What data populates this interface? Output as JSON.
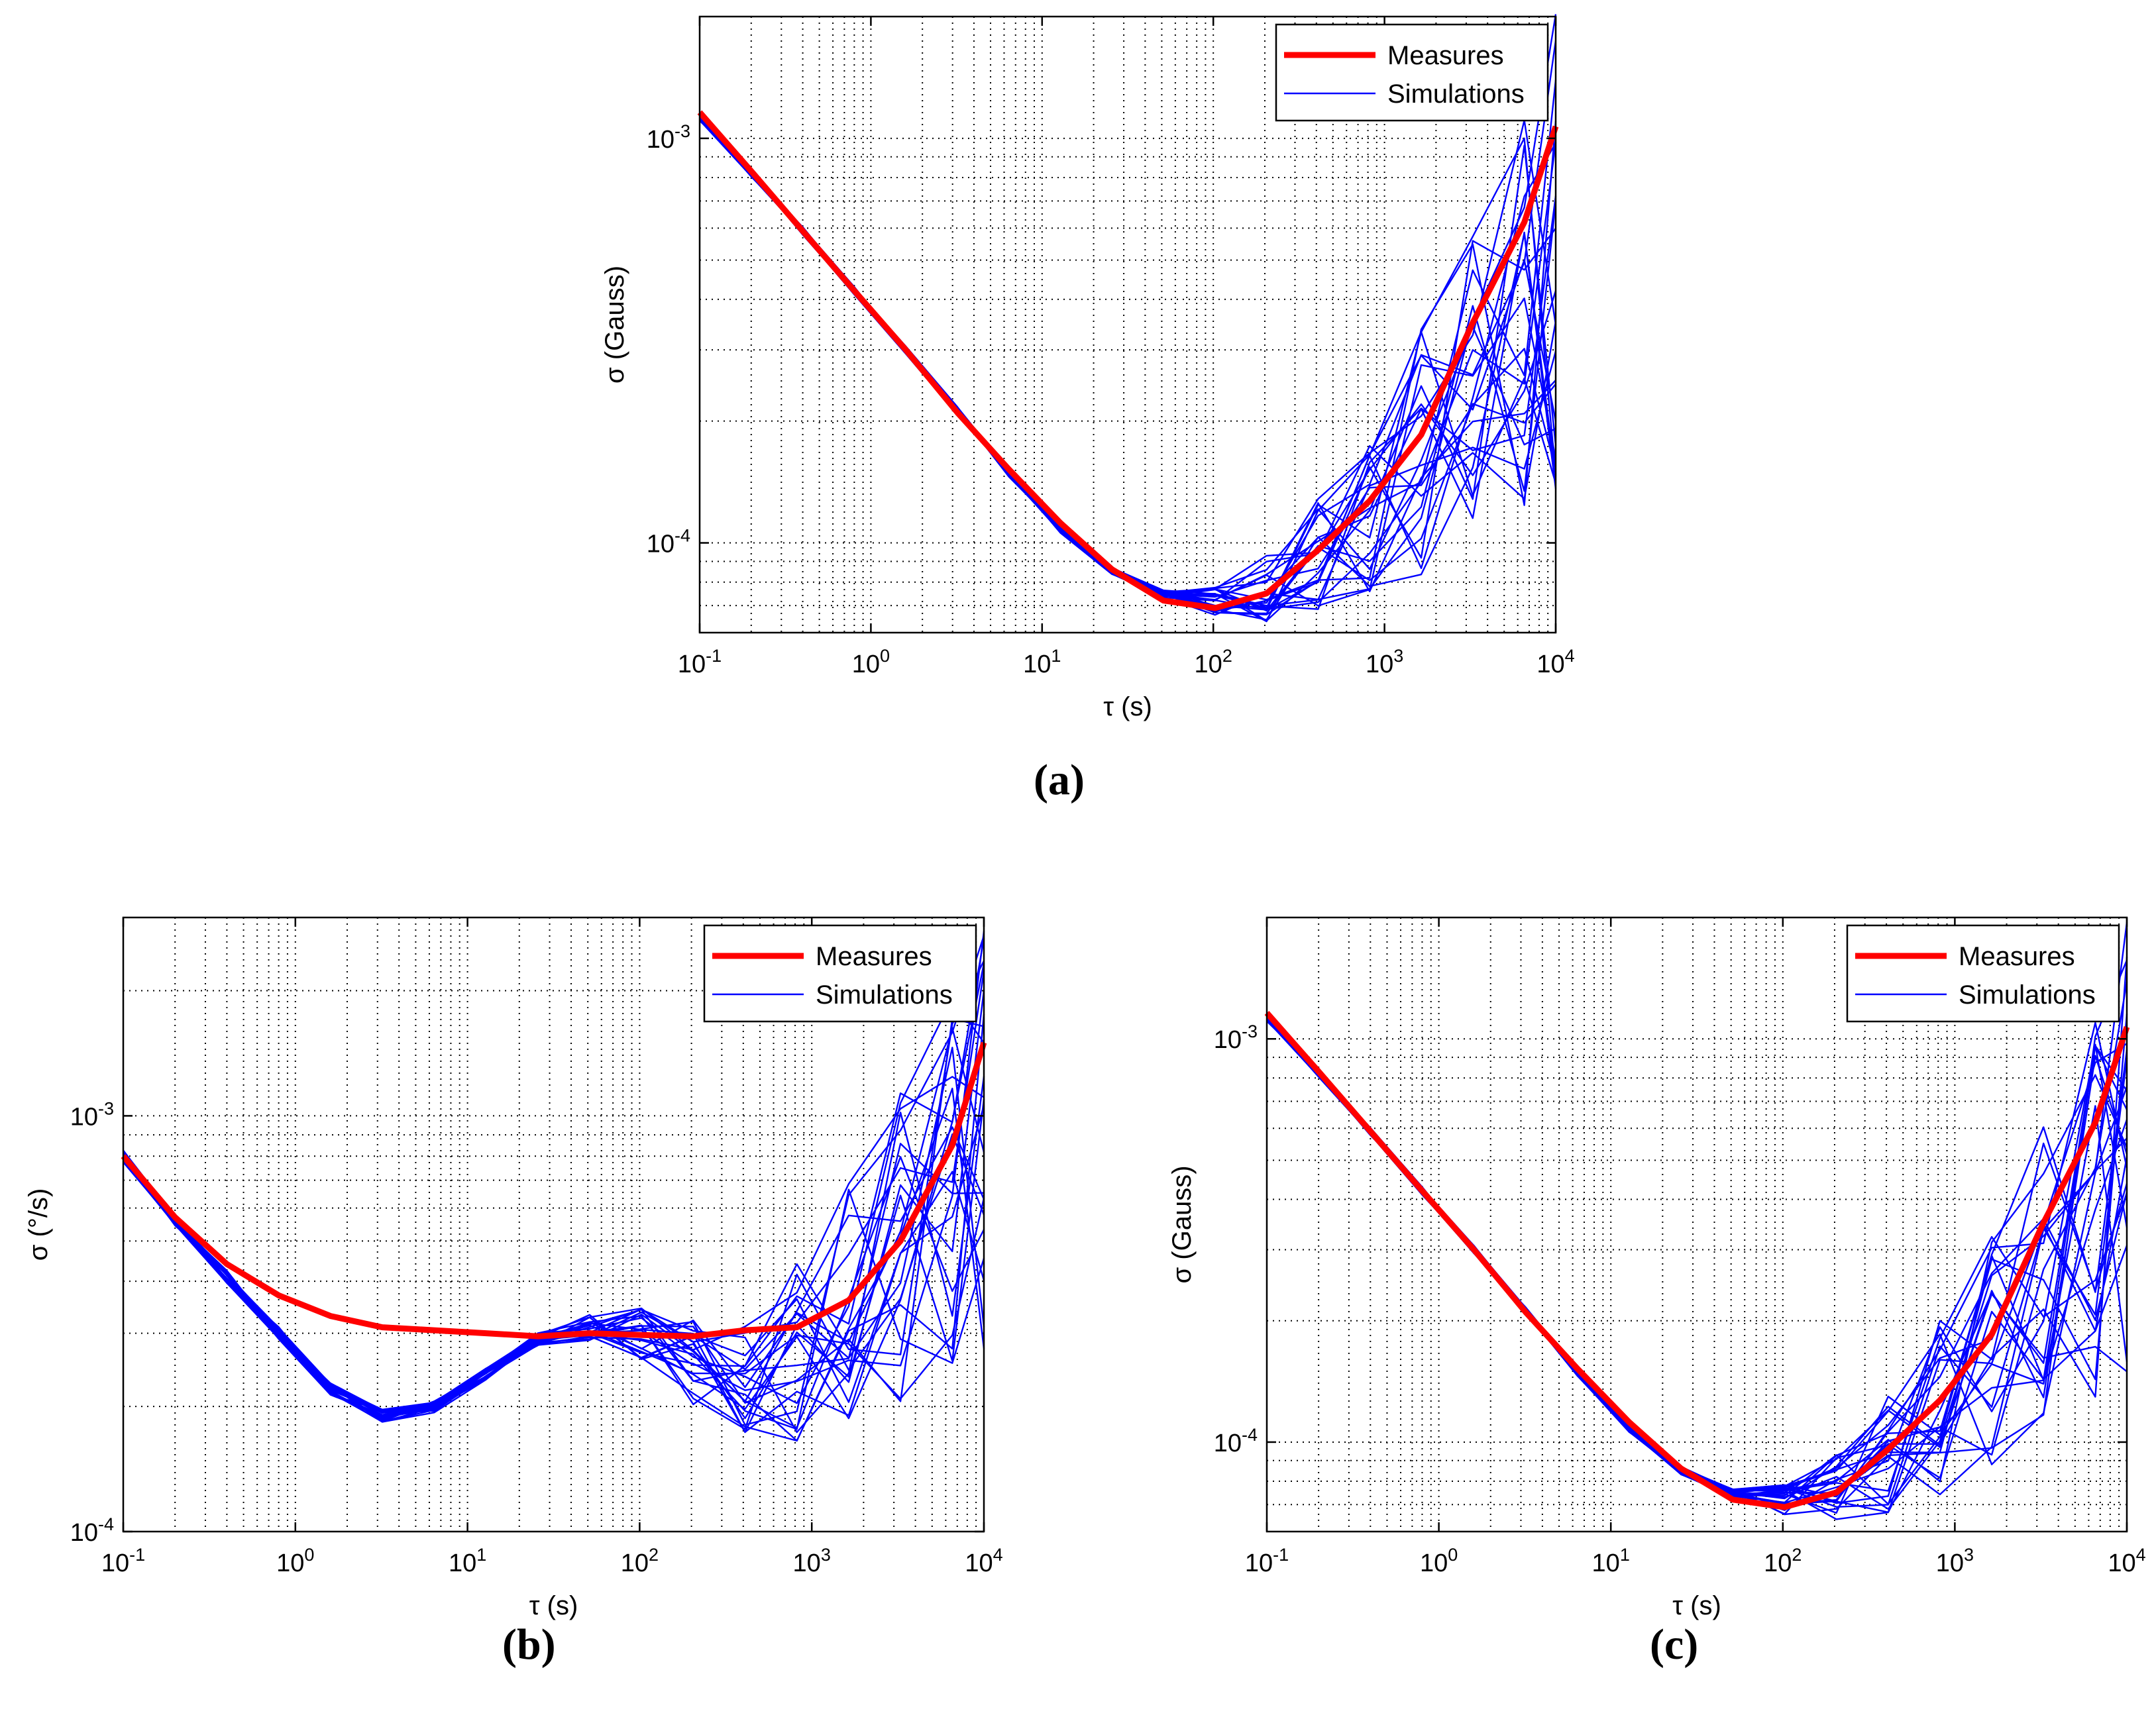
{
  "colors": {
    "measures": "#ff0000",
    "simulations": "#0000ff",
    "grid": "#000000"
  },
  "panel_labels": [
    "(a)",
    "(b)",
    "(c)"
  ],
  "chart_data": [
    {
      "id": "a",
      "type": "line",
      "panel_label": "(a)",
      "xlabel": "τ (s)",
      "ylabel": "σ (Gauss)",
      "xscale": "log",
      "yscale": "log",
      "xlim": [
        0.1,
        10000
      ],
      "ylim": [
        6e-05,
        0.002
      ],
      "xticks": [
        {
          "base": "10",
          "exp": "-1"
        },
        {
          "base": "10",
          "exp": "0"
        },
        {
          "base": "10",
          "exp": "1"
        },
        {
          "base": "10",
          "exp": "2"
        },
        {
          "base": "10",
          "exp": "3"
        },
        {
          "base": "10",
          "exp": "4"
        }
      ],
      "yticks": [
        {
          "base": "10",
          "exp": "-4",
          "value": 0.0001
        },
        {
          "base": "10",
          "exp": "-3",
          "value": 0.001
        }
      ],
      "grid": true,
      "legend": {
        "position": "top-right",
        "entries": [
          "Measures",
          "Simulations"
        ]
      },
      "x": [
        0.1,
        0.2,
        0.4,
        0.8,
        1.6,
        3.2,
        6.4,
        12.8,
        25.6,
        51.2,
        102.4,
        204.8,
        409.6,
        819.2,
        1638.4,
        3276.8,
        6553.6,
        10000
      ],
      "series": [
        {
          "name": "Measures",
          "values": [
            0.00116,
            0.00083,
            0.00059,
            0.00042,
            0.0003,
            0.00021,
            0.000152,
            0.000112,
            8.6e-05,
            7.2e-05,
            6.9e-05,
            7.5e-05,
            9.6e-05,
            0.000127,
            0.000185,
            0.00035,
            0.00062,
            0.00107
          ]
        },
        {
          "name": "Simulations",
          "values": [
            0.00113,
            0.00082,
            0.00059,
            0.00042,
            0.0003,
            0.000212,
            0.000149,
            0.000108,
            8.5e-05,
            7.5e-05,
            7.2e-05,
            7.7e-05,
            9.4e-05,
            0.000122,
            0.000168,
            0.00025,
            0.00037,
            0.00052
          ]
        }
      ]
    },
    {
      "id": "b",
      "type": "line",
      "panel_label": "(b)",
      "xlabel": "τ (s)",
      "ylabel": "σ (°/s)",
      "xscale": "log",
      "yscale": "log",
      "xlim": [
        0.1,
        10000
      ],
      "ylim": [
        0.0001,
        0.003
      ],
      "xticks": [
        {
          "base": "10",
          "exp": "-1"
        },
        {
          "base": "10",
          "exp": "0"
        },
        {
          "base": "10",
          "exp": "1"
        },
        {
          "base": "10",
          "exp": "2"
        },
        {
          "base": "10",
          "exp": "3"
        },
        {
          "base": "10",
          "exp": "4"
        }
      ],
      "yticks": [
        {
          "base": "10",
          "exp": "-4",
          "value": 0.0001
        },
        {
          "base": "10",
          "exp": "-3",
          "value": 0.001
        }
      ],
      "grid": true,
      "legend": {
        "position": "top-right",
        "entries": [
          "Measures",
          "Simulations"
        ]
      },
      "x": [
        0.1,
        0.2,
        0.4,
        0.8,
        1.6,
        3.2,
        6.4,
        12.8,
        25.6,
        51.2,
        102.4,
        204.8,
        409.6,
        819.2,
        1638.4,
        3276.8,
        6553.6,
        10000
      ],
      "series": [
        {
          "name": "Measures",
          "values": [
            0.0008,
            0.00057,
            0.00044,
            0.00037,
            0.00033,
            0.00031,
            0.000305,
            0.0003,
            0.000295,
            0.0003,
            0.000297,
            0.000295,
            0.000305,
            0.00031,
            0.00036,
            0.0005,
            0.00085,
            0.0015
          ]
        },
        {
          "name": "Simulations",
          "values": [
            0.0008,
            0.00056,
            0.00041,
            0.0003,
            0.00022,
            0.00019,
            0.0002,
            0.00024,
            0.00029,
            0.00031,
            0.0003,
            0.00026,
            0.00025,
            0.00028,
            0.00035,
            0.00048,
            0.00068,
            0.00095
          ]
        }
      ]
    },
    {
      "id": "c",
      "type": "line",
      "panel_label": "(c)",
      "xlabel": "τ (s)",
      "ylabel": "σ (Gauss)",
      "xscale": "log",
      "yscale": "log",
      "xlim": [
        0.1,
        10000
      ],
      "ylim": [
        6e-05,
        0.002
      ],
      "xticks": [
        {
          "base": "10",
          "exp": "-1"
        },
        {
          "base": "10",
          "exp": "0"
        },
        {
          "base": "10",
          "exp": "1"
        },
        {
          "base": "10",
          "exp": "2"
        },
        {
          "base": "10",
          "exp": "3"
        },
        {
          "base": "10",
          "exp": "4"
        }
      ],
      "yticks": [
        {
          "base": "10",
          "exp": "-4",
          "value": 0.0001
        },
        {
          "base": "10",
          "exp": "-3",
          "value": 0.001
        }
      ],
      "grid": true,
      "legend": {
        "position": "top-right",
        "entries": [
          "Measures",
          "Simulations"
        ]
      },
      "x": [
        0.1,
        0.2,
        0.4,
        0.8,
        1.6,
        3.2,
        6.4,
        12.8,
        25.6,
        51.2,
        102.4,
        204.8,
        409.6,
        819.2,
        1638.4,
        3276.8,
        6553.6,
        10000
      ],
      "series": [
        {
          "name": "Measures",
          "values": [
            0.00116,
            0.00083,
            0.00059,
            0.00042,
            0.0003,
            0.00021,
            0.000152,
            0.000112,
            8.6e-05,
            7.2e-05,
            6.9e-05,
            7.5e-05,
            9.6e-05,
            0.000127,
            0.000185,
            0.00035,
            0.00062,
            0.00107
          ]
        },
        {
          "name": "Simulations",
          "values": [
            0.00113,
            0.00082,
            0.00059,
            0.00042,
            0.0003,
            0.000212,
            0.000149,
            0.000108,
            8.5e-05,
            7.5e-05,
            7.2e-05,
            7.7e-05,
            9.4e-05,
            0.000122,
            0.000168,
            0.00025,
            0.00037,
            0.00052
          ]
        }
      ]
    }
  ]
}
